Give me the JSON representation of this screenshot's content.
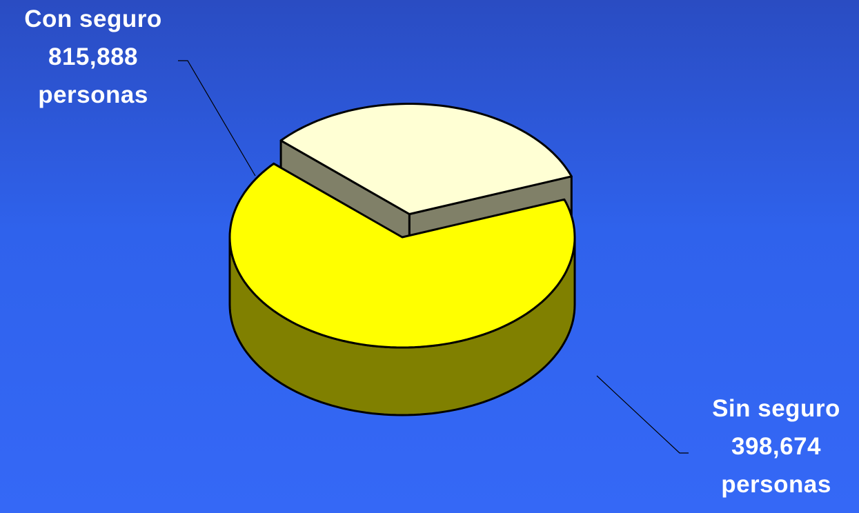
{
  "chart_data": {
    "type": "pie",
    "style": "3d-exploded",
    "slices": [
      {
        "label": "Con seguro",
        "value": 815888,
        "value_text": "815,888",
        "unit": "personas",
        "top_color": "#ffff00",
        "side_color": "#808000"
      },
      {
        "label": "Sin seguro",
        "value": 398674,
        "value_text": "398,674",
        "unit": "personas",
        "top_color": "#ffffd4",
        "side_color": "#808068"
      }
    ],
    "exploded_slice": "Sin seguro",
    "title": ""
  }
}
